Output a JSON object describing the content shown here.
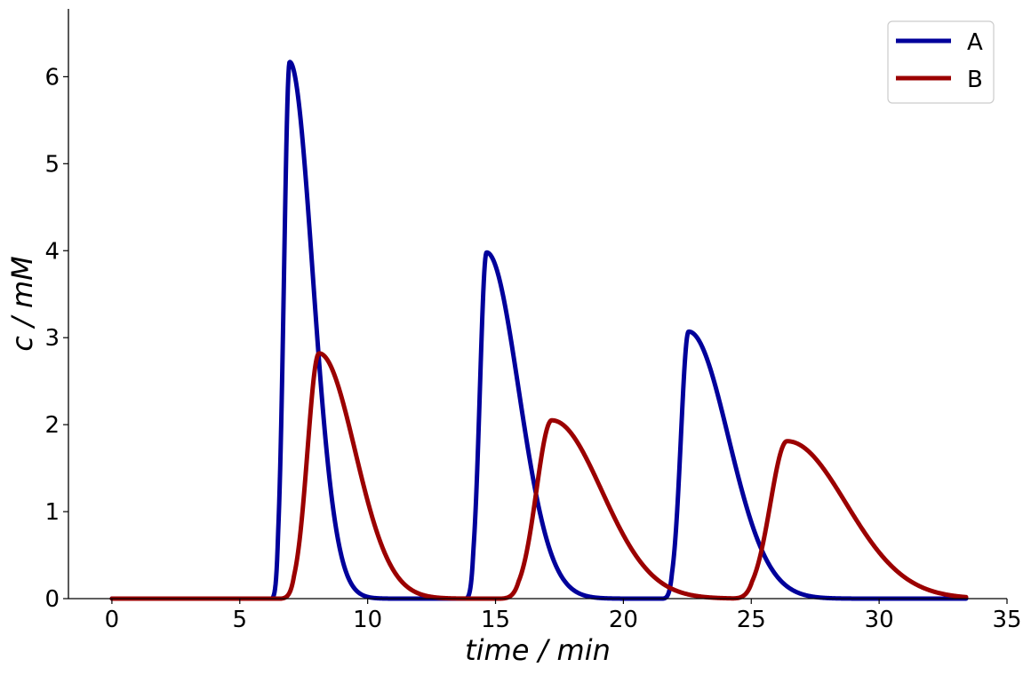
{
  "chart_data": {
    "type": "line",
    "xlabel": "time / min",
    "ylabel": "c / mM",
    "xlim": [
      -1.7,
      35
    ],
    "ylim": [
      0,
      6.78
    ],
    "xticks": [
      0,
      5,
      10,
      15,
      20,
      25,
      30,
      35
    ],
    "yticks": [
      0,
      1,
      2,
      3,
      4,
      5,
      6
    ],
    "x_range": [
      0,
      33.4
    ],
    "grid": false,
    "legend_position": "top-right",
    "series": [
      {
        "name": "A",
        "color": "#00009b",
        "peaks": [
          {
            "t": 6.95,
            "height": 6.17,
            "rise": 0.22,
            "fall": 0.9,
            "start": 6.25
          },
          {
            "t": 14.65,
            "height": 3.98,
            "rise": 0.26,
            "fall": 1.25,
            "start": 13.85
          },
          {
            "t": 22.55,
            "height": 3.07,
            "rise": 0.3,
            "fall": 1.55,
            "start": 21.55
          }
        ]
      },
      {
        "name": "B",
        "color": "#9b0000",
        "peaks": [
          {
            "t": 8.1,
            "height": 2.82,
            "rise": 0.45,
            "fall": 1.4,
            "start": 6.6
          },
          {
            "t": 17.2,
            "height": 2.05,
            "rise": 0.6,
            "fall": 1.95,
            "start": 15.2
          },
          {
            "t": 26.4,
            "height": 1.81,
            "rise": 0.65,
            "fall": 2.3,
            "start": 24.3
          }
        ]
      }
    ]
  }
}
